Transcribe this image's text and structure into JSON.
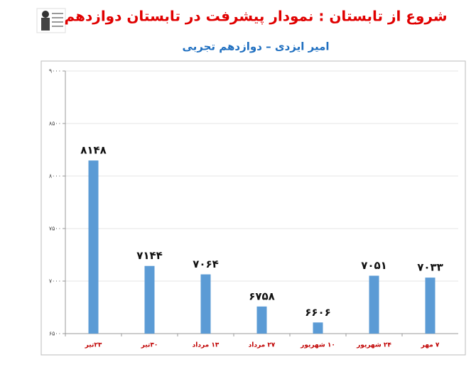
{
  "chart_data": {
    "type": "bar",
    "title": "شروع از تابستان : نمودار پیشرفت در تابستان دوازدهم",
    "subtitle": "امیر ایزدی – دوازدهم تجربی",
    "categories": [
      "۲۳تیر",
      "۳۰تیر",
      "۱۳ مرداد",
      "۲۷ مرداد",
      "۱۰ شهریور",
      "۲۴ شهریور",
      "۷ مهر"
    ],
    "values": [
      8148,
      7144,
      7064,
      6758,
      6606,
      7051,
      7033
    ],
    "value_labels": [
      "۸۱۴۸",
      "۷۱۴۴",
      "۷۰۶۴",
      "۶۷۵۸",
      "۶۶۰۶",
      "۷۰۵۱",
      "۷۰۳۳"
    ],
    "color": "#5b9bd5",
    "ylim": [
      6500,
      9000
    ],
    "yticks": [
      {
        "value": 6500,
        "label": "۶۵۰۰"
      },
      {
        "value": 7000,
        "label": "۷۰۰۰"
      },
      {
        "value": 7500,
        "label": "۷۵۰۰"
      },
      {
        "value": 8000,
        "label": "۸۰۰۰"
      },
      {
        "value": 8500,
        "label": "۸۵۰۰"
      },
      {
        "value": 9000,
        "label": "۹۰۰۰"
      }
    ],
    "grid": true
  }
}
